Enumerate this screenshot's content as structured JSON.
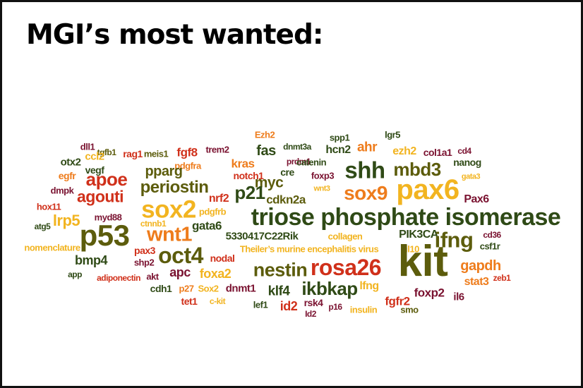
{
  "title": "MGI’s most wanted:",
  "words": [
    {
      "text": "dll1",
      "color": "mr"
    },
    {
      "text": "tgfb1",
      "color": "ol"
    },
    {
      "text": "ccl2",
      "color": "ye"
    },
    {
      "text": "rag1",
      "color": "rd"
    },
    {
      "text": "meis1",
      "color": "ol"
    },
    {
      "text": "fgf8",
      "color": "rd"
    },
    {
      "text": "trem2",
      "color": "mr"
    },
    {
      "text": "Ezh2",
      "color": "or"
    },
    {
      "text": "dnmt3a",
      "color": "dg"
    },
    {
      "text": "spp1",
      "color": "dg"
    },
    {
      "text": "lgr5",
      "color": "dg"
    },
    {
      "text": "fas",
      "color": "dg"
    },
    {
      "text": "prdm1",
      "color": "mr"
    },
    {
      "text": "hcn2",
      "color": "dg"
    },
    {
      "text": "ahr",
      "color": "or"
    },
    {
      "text": "ezh2",
      "color": "ye"
    },
    {
      "text": "col1a1",
      "color": "mr"
    },
    {
      "text": "cd4",
      "color": "mr"
    },
    {
      "text": "otx2",
      "color": "dg"
    },
    {
      "text": "vegf",
      "color": "dg"
    },
    {
      "text": "pdgfra",
      "color": "or"
    },
    {
      "text": "kras",
      "color": "or"
    },
    {
      "text": "catenin",
      "color": "dg"
    },
    {
      "text": "nanog",
      "color": "dg"
    },
    {
      "text": "egfr",
      "color": "or"
    },
    {
      "text": "apoe",
      "color": "rd"
    },
    {
      "text": "pparg",
      "color": "ol"
    },
    {
      "text": "notch1",
      "color": "rd"
    },
    {
      "text": "cre",
      "color": "dg"
    },
    {
      "text": "foxp3",
      "color": "mr"
    },
    {
      "text": "shh",
      "color": "dg"
    },
    {
      "text": "mbd3",
      "color": "ol"
    },
    {
      "text": "gata3",
      "color": "ye"
    },
    {
      "text": "dmpk",
      "color": "mr"
    },
    {
      "text": "periostin",
      "color": "ol"
    },
    {
      "text": "myc",
      "color": "ol"
    },
    {
      "text": "wnt3",
      "color": "ye"
    },
    {
      "text": "pax6",
      "color": "ye"
    },
    {
      "text": "agouti",
      "color": "rd"
    },
    {
      "text": "p21",
      "color": "dg"
    },
    {
      "text": "cdkn2a",
      "color": "ol"
    },
    {
      "text": "sox9",
      "color": "or"
    },
    {
      "text": "Pax6",
      "color": "mr"
    },
    {
      "text": "hox11",
      "color": "rd"
    },
    {
      "text": "nrf2",
      "color": "rd"
    },
    {
      "text": "sox2",
      "color": "ye"
    },
    {
      "text": "pdgfrb",
      "color": "ye"
    },
    {
      "text": "triose phosphate isomerase",
      "color": "dg"
    },
    {
      "text": "lrp5",
      "color": "ye"
    },
    {
      "text": "myd88",
      "color": "mr"
    },
    {
      "text": "atg5",
      "color": "dg"
    },
    {
      "text": "ctnnb1",
      "color": "ye"
    },
    {
      "text": "wnt1",
      "color": "or"
    },
    {
      "text": "gata6",
      "color": "dg"
    },
    {
      "text": "p53",
      "color": "ol"
    },
    {
      "text": "5330417C22Rik",
      "color": "dg"
    },
    {
      "text": "collagen",
      "color": "ye"
    },
    {
      "text": "PIK3CA",
      "color": "dg"
    },
    {
      "text": "cd36",
      "color": "mr"
    },
    {
      "text": "ifng",
      "color": "ol"
    },
    {
      "text": "csf1r",
      "color": "dg"
    },
    {
      "text": "nomenclature",
      "color": "ye"
    },
    {
      "text": "pax3",
      "color": "rd"
    },
    {
      "text": "oct4",
      "color": "ol"
    },
    {
      "text": "Theiler’s murine encephalitis virus",
      "color": "ye"
    },
    {
      "text": "il10",
      "color": "ye"
    },
    {
      "text": "bmp4",
      "color": "dg"
    },
    {
      "text": "shp2",
      "color": "mr"
    },
    {
      "text": "nodal",
      "color": "rd"
    },
    {
      "text": "kit",
      "color": "ol"
    },
    {
      "text": "nestin",
      "color": "ol"
    },
    {
      "text": "rosa26",
      "color": "rd"
    },
    {
      "text": "gapdh",
      "color": "or"
    },
    {
      "text": "app",
      "color": "dg"
    },
    {
      "text": "adiponectin",
      "color": "rd"
    },
    {
      "text": "akt",
      "color": "mr"
    },
    {
      "text": "apc",
      "color": "mr"
    },
    {
      "text": "foxa2",
      "color": "ye"
    },
    {
      "text": "stat3",
      "color": "or"
    },
    {
      "text": "zeb1",
      "color": "rd"
    },
    {
      "text": "cdh1",
      "color": "dg"
    },
    {
      "text": "p27",
      "color": "or"
    },
    {
      "text": "Sox2",
      "color": "ye"
    },
    {
      "text": "dnmt1",
      "color": "mr"
    },
    {
      "text": "ikbkap",
      "color": "dg"
    },
    {
      "text": "lfng",
      "color": "ye"
    },
    {
      "text": "foxp2",
      "color": "mr"
    },
    {
      "text": "il6",
      "color": "mr"
    },
    {
      "text": "klf4",
      "color": "dg"
    },
    {
      "text": "tet1",
      "color": "rd"
    },
    {
      "text": "c-kit",
      "color": "ye"
    },
    {
      "text": "fgfr2",
      "color": "rd"
    },
    {
      "text": "lef1",
      "color": "dg"
    },
    {
      "text": "id2",
      "color": "rd"
    },
    {
      "text": "rsk4",
      "color": "mr"
    },
    {
      "text": "p16",
      "color": "mr"
    },
    {
      "text": "insulin",
      "color": "ye"
    },
    {
      "text": "smo",
      "color": "ol"
    },
    {
      "text": "Id2",
      "color": "mr"
    }
  ]
}
